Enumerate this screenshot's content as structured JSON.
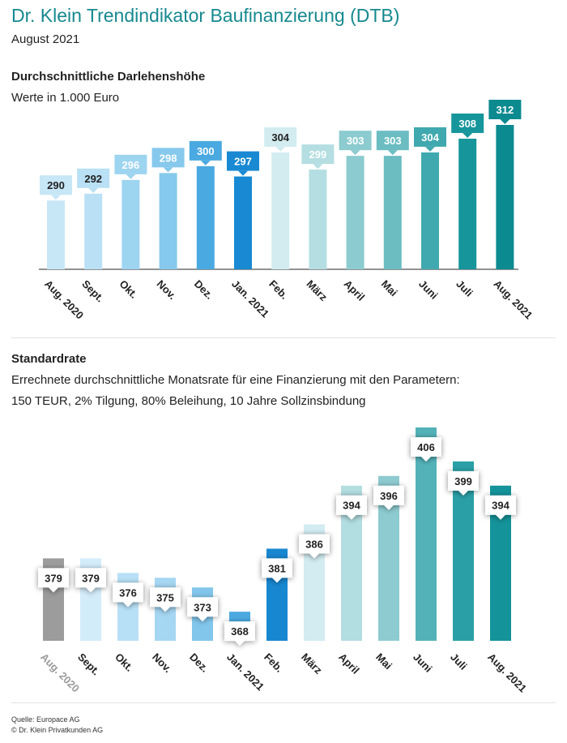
{
  "header": {
    "title": "Dr. Klein Trendindikator Baufinanzierung (DTB)",
    "subtitle": "August 2021"
  },
  "chart_data": [
    {
      "type": "bar",
      "title": "Durchschnittliche Darlehenshöhe",
      "subtitle": "Werte in 1.000 Euro",
      "categories": [
        "Aug. 2020",
        "Sept.",
        "Okt.",
        "Nov.",
        "Dez.",
        "Jan. 2021",
        "Feb.",
        "März",
        "April",
        "Mai",
        "Juni",
        "Juli",
        "Aug. 2021"
      ],
      "values": [
        290,
        292,
        296,
        298,
        300,
        297,
        304,
        299,
        303,
        303,
        304,
        308,
        312
      ],
      "colors": [
        "#c7e6f6",
        "#b9e0f4",
        "#9dd4f0",
        "#86c9ec",
        "#4aa9e0",
        "#1889d2",
        "#d2ecf0",
        "#b4dee1",
        "#8ccbcf",
        "#6bbdc2",
        "#40a9af",
        "#16959b",
        "#0b8a90"
      ],
      "label_text_colors": [
        "#222",
        "#222",
        "#ffffff",
        "#ffffff",
        "#ffffff",
        "#ffffff",
        "#222",
        "#ffffff",
        "#ffffff",
        "#ffffff",
        "#ffffff",
        "#ffffff",
        "#ffffff"
      ],
      "ylim": [
        270,
        312
      ],
      "axis_color": "#6f6f6f"
    },
    {
      "type": "bar",
      "title": "Standardrate",
      "subtitle_lines": [
        "Errechnete durchschnittliche Monatsrate für eine Finanzierung mit den Parametern:",
        "150 TEUR, 2% Tilgung, 80% Beleihung, 10 Jahre Sollzinsbindung"
      ],
      "categories": [
        "Aug. 2020",
        "Sept.",
        "Okt.",
        "Nov.",
        "Dez.",
        "Jan. 2021",
        "Feb.",
        "März",
        "April",
        "Mai",
        "Juni",
        "Juli",
        "Aug. 2021"
      ],
      "values": [
        379,
        379,
        376,
        375,
        373,
        368,
        381,
        386,
        394,
        396,
        406,
        399,
        394
      ],
      "colors": [
        "#9c9c9c",
        "#d3ecfa",
        "#b7e0f6",
        "#a5d6f2",
        "#82c6ec",
        "#4aa9e0",
        "#1887d1",
        "#d2ecf1",
        "#b2dde1",
        "#8dcbd0",
        "#53b2b8",
        "#2aa0a6",
        "#14939a"
      ],
      "ylim": [
        362,
        406
      ],
      "highlight_index": 0,
      "highlight_color": "#9a9a9a"
    }
  ],
  "footer": {
    "source": "Quelle: Europace AG",
    "copyright": "© Dr. Klein Privatkunden AG"
  }
}
